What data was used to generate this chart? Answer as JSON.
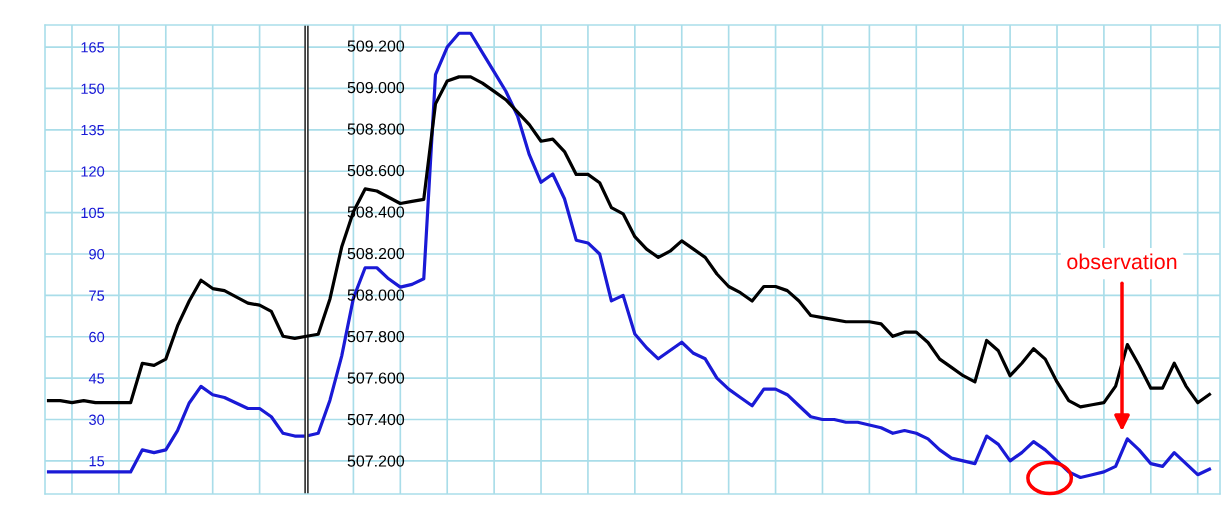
{
  "chart_data": {
    "type": "line",
    "categories": [
      null,
      null,
      null,
      null,
      null,
      null,
      null,
      null,
      null,
      null,
      null,
      null,
      null,
      null,
      null,
      null,
      null,
      null,
      null,
      null,
      null,
      null,
      null,
      null,
      null,
      null,
      null,
      null,
      null,
      null,
      null,
      null,
      null,
      null,
      null,
      null,
      null,
      null,
      null,
      null,
      null,
      null,
      null,
      null,
      null,
      null,
      null,
      null,
      null,
      null,
      null,
      null,
      null,
      null,
      null,
      null,
      null,
      null,
      null,
      null,
      null,
      null,
      null,
      null,
      null,
      null,
      null,
      null,
      null,
      null,
      null,
      null,
      null,
      null,
      null,
      null,
      null,
      null,
      null,
      null,
      null,
      null,
      null,
      null,
      null,
      null,
      null,
      null,
      null,
      null,
      null,
      null,
      null,
      null,
      null,
      null,
      null,
      null,
      null,
      null
    ],
    "ylim": [
      3,
      173
    ],
    "yticks": [
      15,
      30,
      45,
      60,
      75,
      90,
      105,
      120,
      135,
      150,
      165
    ],
    "y2lim": [
      507.04,
      509.3
    ],
    "y2ticks": [
      {
        "value": 507.2,
        "label": "507.200"
      },
      {
        "value": 507.4,
        "label": "507.400"
      },
      {
        "value": 507.6,
        "label": "507.600"
      },
      {
        "value": 507.8,
        "label": "507.800"
      },
      {
        "value": 508.0,
        "label": "508.000"
      },
      {
        "value": 508.2,
        "label": "508.200"
      },
      {
        "value": 508.4,
        "label": "508.400"
      },
      {
        "value": 508.6,
        "label": "508.600"
      },
      {
        "value": 508.8,
        "label": "508.800"
      },
      {
        "value": 509.0,
        "label": "509.000"
      },
      {
        "value": 509.2,
        "label": "509.200"
      }
    ],
    "tick_labels": "y",
    "grid": true,
    "line_style": "solid",
    "annotations": [
      "observation"
    ],
    "series": [
      {
        "color": "#1a1ad6",
        "values": [
          11,
          11,
          11,
          11,
          11,
          11,
          11,
          11,
          19,
          18,
          19,
          26,
          36,
          42,
          39,
          38,
          36,
          34,
          34,
          31,
          25,
          24,
          24,
          25,
          37,
          53,
          74,
          85,
          85,
          81,
          78,
          79,
          81,
          155,
          165,
          170,
          170,
          163,
          156,
          149,
          140,
          126,
          116,
          119,
          110,
          95,
          94,
          90,
          73,
          75,
          61,
          56,
          52,
          55,
          58,
          54,
          52,
          45,
          41,
          38,
          35,
          41,
          41,
          39,
          35,
          31,
          30,
          30,
          29,
          29,
          28,
          27,
          25,
          26,
          25,
          23,
          19,
          16,
          15,
          14,
          24,
          21,
          15,
          18,
          22,
          19,
          15,
          11,
          9,
          10,
          11,
          13,
          23,
          19,
          14,
          13,
          18,
          14,
          10,
          12
        ]
      },
      {
        "color": "#000000",
        "axis": "y2",
        "values": [
          507.49,
          507.49,
          507.48,
          507.49,
          507.48,
          507.48,
          507.48,
          507.48,
          507.67,
          507.66,
          507.69,
          507.85,
          507.97,
          508.07,
          508.03,
          508.02,
          507.99,
          507.96,
          507.95,
          507.92,
          507.8,
          507.79,
          507.8,
          507.81,
          507.98,
          508.23,
          508.4,
          508.51,
          508.5,
          508.47,
          508.44,
          508.45,
          508.46,
          508.92,
          509.03,
          509.05,
          509.05,
          509.02,
          508.98,
          508.94,
          508.88,
          508.82,
          508.74,
          508.75,
          508.69,
          508.58,
          508.58,
          508.54,
          508.42,
          508.39,
          508.28,
          508.22,
          508.18,
          508.21,
          508.26,
          508.22,
          508.18,
          508.1,
          508.04,
          508.01,
          507.97,
          508.04,
          508.04,
          508.02,
          507.97,
          507.9,
          507.89,
          507.88,
          507.87,
          507.87,
          507.87,
          507.86,
          507.8,
          507.82,
          507.82,
          507.77,
          507.69,
          507.65,
          507.61,
          507.58,
          507.78,
          507.73,
          507.61,
          507.67,
          507.74,
          507.69,
          507.58,
          507.49,
          507.46,
          507.47,
          507.48,
          507.56,
          507.76,
          507.66,
          507.55,
          507.55,
          507.67,
          507.56,
          507.48,
          507.52
        ]
      }
    ]
  }
}
